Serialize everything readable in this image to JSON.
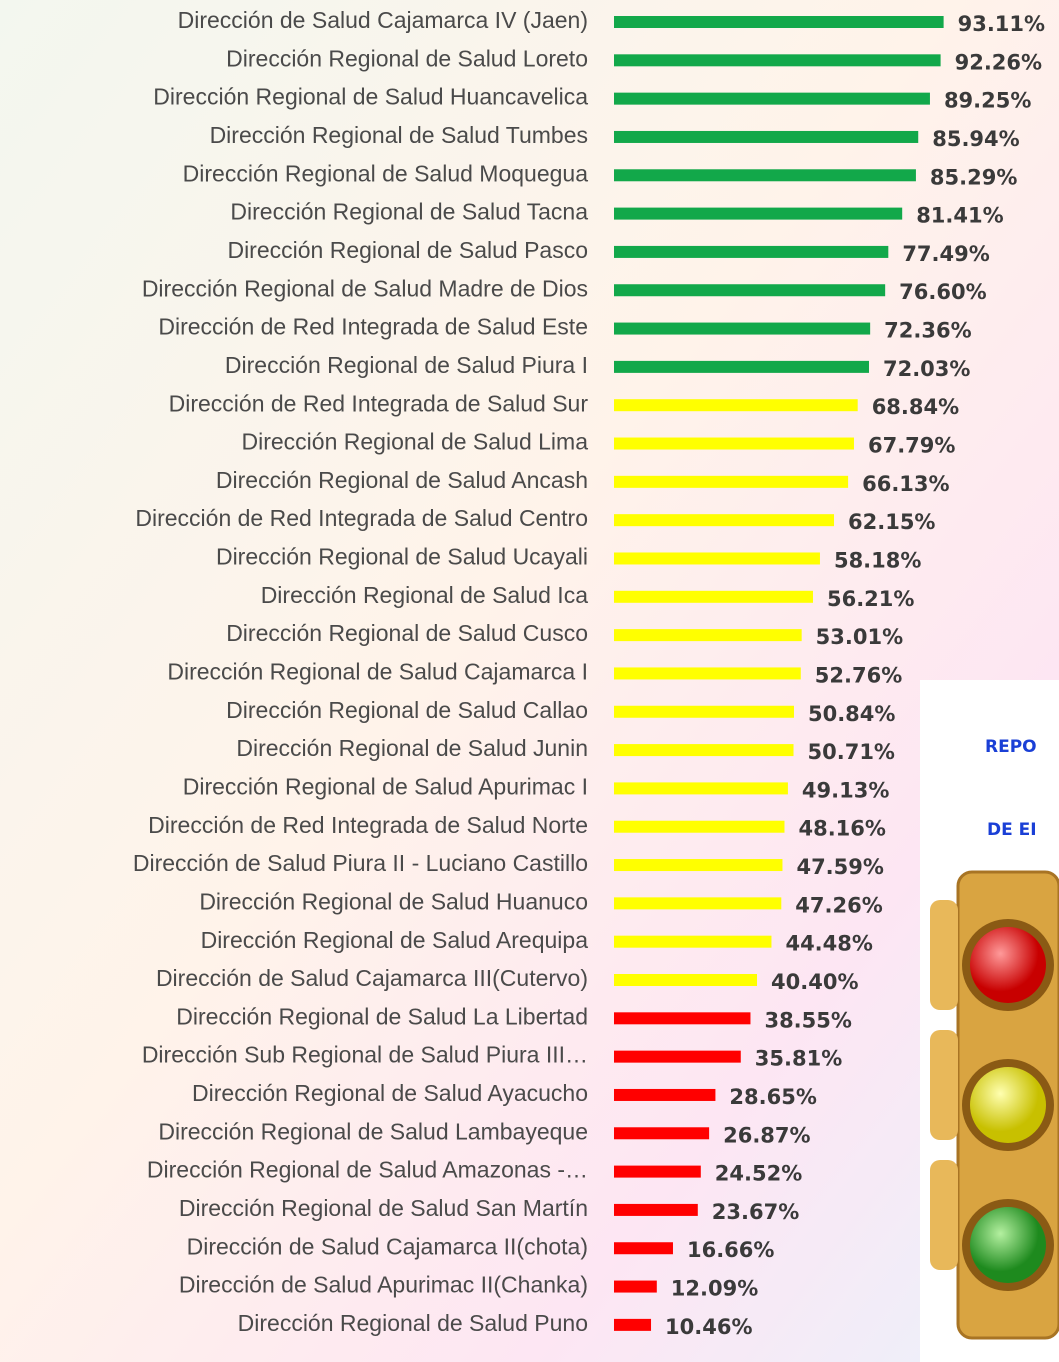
{
  "chart_data": {
    "type": "barh",
    "categories": [
      "Dirección de Salud Cajamarca IV (Jaen)",
      "Dirección Regional de Salud Loreto",
      "Dirección Regional de Salud Huancavelica",
      "Dirección Regional de Salud Tumbes",
      "Dirección Regional de Salud Moquegua",
      "Dirección Regional de Salud Tacna",
      "Dirección Regional de Salud Pasco",
      "Dirección Regional de Salud Madre de Dios",
      "Dirección de Red Integrada de Salud Este",
      "Dirección Regional de Salud Piura I",
      "Dirección de Red Integrada de Salud Sur",
      "Dirección Regional de Salud Lima",
      "Dirección Regional de Salud Ancash",
      "Dirección de Red Integrada de Salud Centro",
      "Dirección Regional de Salud Ucayali",
      "Dirección Regional de Salud Ica",
      "Dirección Regional de Salud Cusco",
      "Dirección Regional de Salud Cajamarca I",
      "Dirección Regional de Salud Callao",
      "Dirección Regional de Salud Junin",
      "Dirección Regional de Salud Apurimac I",
      "Dirección de Red Integrada de Salud Norte",
      "Dirección de Salud Piura II - Luciano Castillo",
      "Dirección Regional de Salud Huanuco",
      "Dirección Regional de Salud Arequipa",
      "Dirección de Salud Cajamarca III(Cutervo)",
      "Dirección Regional de Salud La Libertad",
      "Dirección Sub Regional de Salud Piura III…",
      "Dirección Regional de Salud Ayacucho",
      "Dirección Regional de Salud Lambayeque",
      "Dirección Regional de Salud Amazonas -…",
      "Dirección Regional de Salud San Martín",
      "Dirección de Salud Cajamarca II(chota)",
      "Dirección de Salud Apurimac II(Chanka)",
      "Dirección Regional de Salud Puno"
    ],
    "values": [
      93.11,
      92.26,
      89.25,
      85.94,
      85.29,
      81.41,
      77.49,
      76.6,
      72.36,
      72.03,
      68.84,
      67.79,
      66.13,
      62.15,
      58.18,
      56.21,
      53.01,
      52.76,
      50.84,
      50.71,
      49.13,
      48.16,
      47.59,
      47.26,
      44.48,
      40.4,
      38.55,
      35.81,
      28.65,
      26.87,
      24.52,
      23.67,
      16.66,
      12.09,
      10.46
    ],
    "value_labels": [
      "93.11%",
      "92.26%",
      "89.25%",
      "85.94%",
      "85.29%",
      "81.41%",
      "77.49%",
      "76.60%",
      "72.36%",
      "72.03%",
      "68.84%",
      "67.79%",
      "66.13%",
      "62.15%",
      "58.18%",
      "56.21%",
      "53.01%",
      "52.76%",
      "50.84%",
      "50.71%",
      "49.13%",
      "48.16%",
      "47.59%",
      "47.26%",
      "44.48%",
      "40.40%",
      "38.55%",
      "35.81%",
      "28.65%",
      "26.87%",
      "24.52%",
      "23.67%",
      "16.66%",
      "12.09%",
      "10.46%"
    ],
    "colors": [
      "#12a84a",
      "#12a84a",
      "#12a84a",
      "#12a84a",
      "#12a84a",
      "#12a84a",
      "#12a84a",
      "#12a84a",
      "#12a84a",
      "#12a84a",
      "#ffff00",
      "#ffff00",
      "#ffff00",
      "#ffff00",
      "#ffff00",
      "#ffff00",
      "#ffff00",
      "#ffff00",
      "#ffff00",
      "#ffff00",
      "#ffff00",
      "#ffff00",
      "#ffff00",
      "#ffff00",
      "#ffff00",
      "#ffff00",
      "#ff0000",
      "#ff0000",
      "#ff0000",
      "#ff0000",
      "#ff0000",
      "#ff0000",
      "#ff0000",
      "#ff0000",
      "#ff0000"
    ],
    "annotations": [
      "REPO",
      "DE EI"
    ]
  }
}
